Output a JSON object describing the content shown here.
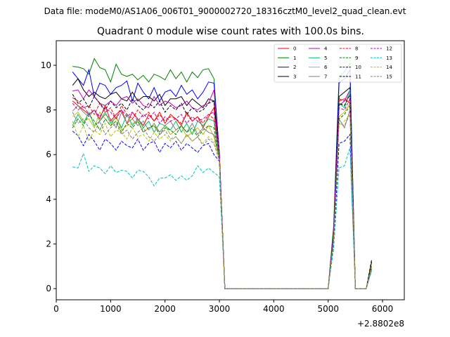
{
  "chart_data": {
    "type": "line",
    "suptitle": "Data file: modeM0/AS1A06_006T01_9000002720_18316cztM0_level2_quad_clean.evt",
    "title": "Quadrant 0 module wise count rates with 100.0s bins.",
    "xlabel": "",
    "ylabel": "",
    "x_offset_label": "+2.8802e8",
    "xlim": [
      0,
      6400
    ],
    "ylim": [
      -0.5,
      11.1
    ],
    "xticks": [
      0,
      1000,
      2000,
      3000,
      4000,
      5000,
      6000
    ],
    "yticks": [
      0,
      2,
      4,
      6,
      8,
      10
    ],
    "legend_position": "upper-right",
    "x": [
      300,
      400,
      500,
      600,
      700,
      800,
      900,
      1000,
      1100,
      1200,
      1300,
      1400,
      1500,
      1600,
      1700,
      1800,
      1900,
      2000,
      2100,
      2200,
      2300,
      2400,
      2500,
      2600,
      2700,
      2800,
      2900,
      3000,
      3100,
      3200,
      3300,
      3400,
      3500,
      3600,
      3700,
      3800,
      3900,
      4000,
      4100,
      4200,
      4300,
      4400,
      4500,
      4600,
      4700,
      4800,
      4900,
      5000,
      5100,
      5200,
      5300,
      5400,
      5500,
      5600,
      5700,
      5800,
      5900,
      6000,
      6100
    ],
    "series": [
      {
        "name": "0",
        "color": "#ff0000",
        "dash": "solid",
        "plateau": [
          8.4,
          8.2,
          8.0,
          7.8,
          8.0,
          7.6,
          8.2,
          7.5,
          7.8,
          8.0,
          7.4,
          7.9,
          7.6,
          7.3,
          7.8,
          7.5,
          7.9,
          7.4,
          7.8,
          7.6,
          7.3,
          7.9,
          7.5,
          7.7,
          7.2,
          7.7,
          8.1
        ],
        "end_vals": [
          6.0,
          0
        ],
        "peak": [
          2.4,
          8.4,
          8.5,
          8.3,
          0,
          0,
          0,
          1.0
        ]
      },
      {
        "name": "1",
        "color": "#008000",
        "dash": "solid",
        "plateau": [
          9.95,
          9.92,
          9.85,
          9.6,
          10.3,
          9.9,
          9.8,
          9.25,
          10.05,
          9.6,
          9.5,
          9.6,
          9.35,
          9.55,
          9.25,
          9.6,
          9.5,
          9.35,
          9.8,
          9.4,
          9.7,
          9.25,
          9.7,
          9.45,
          9.8,
          9.85,
          9.4
        ],
        "end_vals": [
          6.0,
          0
        ],
        "peak": [
          2.8,
          9.5,
          9.7,
          10.1,
          0,
          0,
          0,
          0.9
        ]
      },
      {
        "name": "2",
        "color": "#0000ff",
        "dash": "solid",
        "plateau": [
          9.7,
          9.4,
          9.1,
          9.8,
          8.6,
          9.2,
          9.1,
          8.7,
          9.0,
          9.1,
          9.3,
          8.4,
          9.2,
          8.8,
          8.5,
          9.0,
          8.4,
          8.8,
          8.9,
          8.6,
          9.1,
          8.7,
          8.9,
          8.5,
          8.8,
          9.25,
          9.2
        ],
        "end_vals": [
          6.1,
          0
        ],
        "peak": [
          2.6,
          9.2,
          9.4,
          9.8,
          0,
          0,
          0,
          0.9
        ]
      },
      {
        "name": "3",
        "color": "#000000",
        "dash": "solid",
        "plateau": [
          9.1,
          9.4,
          8.9,
          8.6,
          8.8,
          8.6,
          8.5,
          8.7,
          8.8,
          8.5,
          8.4,
          8.8,
          8.4,
          8.6,
          8.6,
          8.4,
          8.7,
          8.2,
          8.5,
          8.5,
          8.6,
          8.2,
          8.5,
          8.3,
          8.1,
          8.5,
          8.4
        ],
        "end_vals": [
          6.0,
          0
        ],
        "peak": [
          2.4,
          8.6,
          8.8,
          9.0,
          0,
          0,
          0,
          1.2
        ]
      },
      {
        "name": "4",
        "color": "#bf00bf",
        "dash": "solid",
        "plateau": [
          8.85,
          8.9,
          8.5,
          8.9,
          8.6,
          8.3,
          8.2,
          8.4,
          8.2,
          8.5,
          8.6,
          8.3,
          8.5,
          8.2,
          8.1,
          8.6,
          8.2,
          8.4,
          8.3,
          8.1,
          8.2,
          8.4,
          8.1,
          8.0,
          8.2,
          8.3,
          8.9
        ],
        "end_vals": [
          6.0,
          0
        ],
        "peak": [
          2.5,
          8.2,
          8.4,
          8.9,
          0,
          0,
          0,
          1.0
        ]
      },
      {
        "name": "5",
        "color": "#00bf60",
        "dash": "solid",
        "plateau": [
          7.3,
          7.8,
          7.4,
          7.9,
          7.3,
          7.5,
          7.9,
          7.4,
          7.7,
          7.2,
          7.8,
          7.3,
          7.6,
          7.2,
          7.5,
          7.0,
          7.4,
          7.3,
          7.1,
          7.5,
          7.0,
          7.4,
          6.9,
          7.5,
          7.3,
          7.6,
          7.5
        ],
        "end_vals": [
          5.8,
          0
        ],
        "peak": [
          2.2,
          8.3,
          8.1,
          8.9,
          0,
          0,
          0,
          0.9
        ]
      },
      {
        "name": "6",
        "color": "#bfbf00",
        "dash": "solid",
        "plateau": [
          7.7,
          7.9,
          7.5,
          7.6,
          7.2,
          7.9,
          7.6,
          7.3,
          7.7,
          7.1,
          7.3,
          7.4,
          7.5,
          7.0,
          7.2,
          7.3,
          7.0,
          7.3,
          6.9,
          7.1,
          7.3,
          6.8,
          7.0,
          7.2,
          6.9,
          7.3,
          6.8
        ],
        "end_vals": [
          5.9,
          0
        ],
        "peak": [
          2.3,
          7.7,
          7.9,
          8.3,
          0,
          0,
          0,
          1.0
        ]
      },
      {
        "name": "7",
        "color": "#808080",
        "dash": "solid",
        "plateau": [
          7.95,
          8.2,
          7.9,
          7.7,
          8.0,
          7.5,
          7.8,
          7.6,
          7.2,
          7.9,
          7.4,
          7.6,
          7.3,
          7.5,
          7.1,
          7.4,
          7.0,
          7.3,
          7.5,
          7.1,
          7.3,
          7.0,
          7.4,
          6.9,
          7.2,
          7.0,
          6.9
        ],
        "end_vals": [
          5.8,
          0
        ],
        "peak": [
          2.3,
          7.6,
          7.2,
          8.0,
          0,
          0,
          0,
          1.0
        ]
      },
      {
        "name": "8",
        "color": "#ff0000",
        "dash": "dashed",
        "plateau": [
          8.55,
          8.4,
          8.1,
          8.2,
          7.8,
          8.3,
          7.9,
          8.1,
          7.6,
          8.2,
          7.8,
          7.6,
          8.0,
          7.7,
          7.9,
          7.5,
          7.8,
          7.5,
          7.7,
          7.6,
          7.4,
          7.8,
          7.5,
          7.7,
          7.4,
          7.8,
          7.6
        ],
        "end_vals": [
          6.0,
          0
        ],
        "peak": [
          2.4,
          8.5,
          8.4,
          8.6,
          0,
          0,
          0,
          1.0
        ]
      },
      {
        "name": "9",
        "color": "#008000",
        "dash": "dashed",
        "plateau": [
          7.2,
          7.6,
          7.3,
          7.8,
          7.5,
          7.1,
          7.6,
          7.3,
          7.5,
          7.0,
          7.4,
          7.2,
          7.5,
          7.0,
          7.2,
          7.3,
          6.9,
          7.2,
          7.1,
          6.9,
          7.3,
          7.0,
          7.2,
          6.8,
          7.1,
          7.3,
          7.2
        ],
        "end_vals": [
          5.7,
          0
        ],
        "peak": [
          2.2,
          7.6,
          7.8,
          8.2,
          0,
          0,
          0,
          0.9
        ]
      },
      {
        "name": "10",
        "color": "#0000ff",
        "dash": "dashed",
        "plateau": [
          7.05,
          6.85,
          6.4,
          6.9,
          6.6,
          6.2,
          6.7,
          6.5,
          6.2,
          6.6,
          6.4,
          6.3,
          6.7,
          6.2,
          6.5,
          6.6,
          6.1,
          6.5,
          6.3,
          6.6,
          6.2,
          6.5,
          6.3,
          6.1,
          6.4,
          6.5,
          6.0
        ],
        "end_vals": [
          5.7,
          0
        ],
        "peak": [
          2.0,
          6.5,
          6.6,
          6.9,
          0,
          0,
          0,
          0.9
        ]
      },
      {
        "name": "11",
        "color": "#000000",
        "dash": "dashed",
        "plateau": [
          8.7,
          8.3,
          8.5,
          8.1,
          8.6,
          8.3,
          8.0,
          8.4,
          8.1,
          8.3,
          8.0,
          8.5,
          8.2,
          8.0,
          8.3,
          8.1,
          8.4,
          7.9,
          8.2,
          8.0,
          8.3,
          7.8,
          8.1,
          7.9,
          8.0,
          8.3,
          8.4
        ],
        "end_vals": [
          6.0,
          0
        ],
        "peak": [
          2.4,
          8.3,
          8.2,
          8.7,
          0,
          0,
          0,
          1.3
        ]
      },
      {
        "name": "12",
        "color": "#bf00bf",
        "dash": "dashed",
        "plateau": [
          8.3,
          8.0,
          8.2,
          7.8,
          8.0,
          7.7,
          8.1,
          7.9,
          7.6,
          8.0,
          7.7,
          7.9,
          7.5,
          7.8,
          7.6,
          7.9,
          7.4,
          7.7,
          7.5,
          7.6,
          7.8,
          7.4,
          7.7,
          7.5,
          7.6,
          7.8,
          7.9
        ],
        "end_vals": [
          6.0,
          0
        ],
        "peak": [
          2.4,
          8.1,
          8.0,
          8.5,
          0,
          0,
          0,
          1.0
        ]
      },
      {
        "name": "13",
        "color": "#00bfbf",
        "dash": "dashed",
        "plateau": [
          5.45,
          5.4,
          6.05,
          5.25,
          5.5,
          5.4,
          5.15,
          5.5,
          5.2,
          5.3,
          5.25,
          4.95,
          5.3,
          5.25,
          5.0,
          4.6,
          4.95,
          4.95,
          5.1,
          4.85,
          5.05,
          4.85,
          5.05,
          5.5,
          5.2,
          5.4,
          5.2
        ],
        "end_vals": [
          5.0,
          0
        ],
        "peak": [
          1.8,
          5.4,
          5.5,
          6.3,
          0,
          0,
          0,
          0.8
        ]
      },
      {
        "name": "14",
        "color": "#bfbf00",
        "dash": "dashed",
        "plateau": [
          7.5,
          6.8,
          7.3,
          6.6,
          7.1,
          6.9,
          7.4,
          6.8,
          7.1,
          7.0,
          6.7,
          7.2,
          6.8,
          6.9,
          6.6,
          7.0,
          6.7,
          6.9,
          6.6,
          6.8,
          6.5,
          6.9,
          6.6,
          6.8,
          6.5,
          6.8,
          6.6
        ],
        "end_vals": [
          5.8,
          0
        ],
        "peak": [
          2.2,
          7.3,
          7.5,
          7.8,
          0,
          0,
          0,
          1.0
        ]
      },
      {
        "name": "15",
        "color": "#808080",
        "dash": "dashed",
        "plateau": [
          7.9,
          7.4,
          7.6,
          7.2,
          7.0,
          7.5,
          6.9,
          7.2,
          7.4,
          6.9,
          7.1,
          6.7,
          7.0,
          7.2,
          6.8,
          6.6,
          6.9,
          7.1,
          6.7,
          6.8,
          6.5,
          6.9,
          6.6,
          6.8,
          6.4,
          6.7,
          6.5
        ],
        "end_vals": [
          5.7,
          0
        ],
        "peak": [
          2.2,
          7.4,
          7.3,
          7.8,
          0,
          0,
          0,
          0.9
        ]
      }
    ]
  }
}
